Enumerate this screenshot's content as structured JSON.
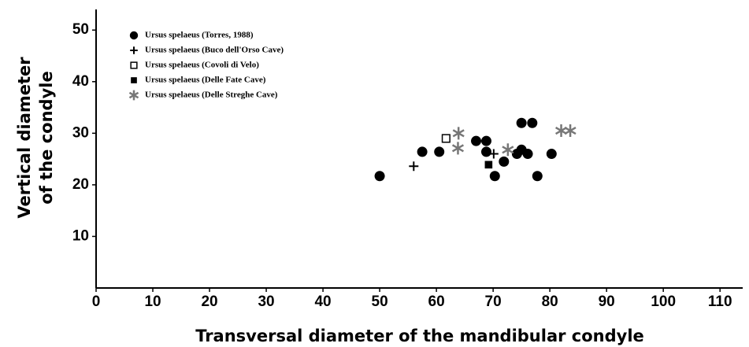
{
  "chart_data": {
    "type": "scatter",
    "xlabel": "Transversal diameter of the mandibular condyle",
    "ylabel": [
      "Vertical diameter",
      "of the condyle"
    ],
    "xlim": [
      0,
      114
    ],
    "ylim": [
      0,
      54
    ],
    "xticks": [
      0,
      10,
      20,
      30,
      40,
      50,
      60,
      70,
      80,
      90,
      100,
      110
    ],
    "yticks": [
      10,
      20,
      30,
      40,
      50
    ],
    "legend": "upper left",
    "series": [
      {
        "name": "Ursus spelaeus (Torres, 1988)",
        "marker": "circle",
        "color": "#000000",
        "x": [
          50,
          57.5,
          60.5,
          67,
          68.8,
          68.8,
          70.3,
          71.9,
          74.2,
          75,
          75,
          76.1,
          76.9,
          77.8,
          80.3
        ],
        "values": [
          21.7,
          26.4,
          26.4,
          28.5,
          28.5,
          26.4,
          21.7,
          24.5,
          26,
          26.8,
          32,
          26,
          32,
          21.7,
          26
        ]
      },
      {
        "name": "Ursus spelaeus (Buco dell'Orso Cave)",
        "marker": "plus",
        "color": "#000000",
        "x": [
          56,
          70.1
        ],
        "values": [
          23.6,
          26
        ]
      },
      {
        "name": "Ursus spelaeus (Covoli di Velo)",
        "marker": "open-square",
        "color": "#000000",
        "x": [
          61.7
        ],
        "values": [
          29
        ]
      },
      {
        "name": "Ursus spelaeus (Delle Fate Cave)",
        "marker": "square",
        "color": "#000000",
        "x": [
          69.2
        ],
        "values": [
          23.9
        ]
      },
      {
        "name": "Ursus spelaeus (Delle Streghe Cave)",
        "marker": "asterisk",
        "color": "#777777",
        "x": [
          63.9,
          63.8,
          72.6,
          82,
          83.6
        ],
        "values": [
          30,
          27.1,
          26.8,
          30.5,
          30.5
        ]
      }
    ]
  }
}
